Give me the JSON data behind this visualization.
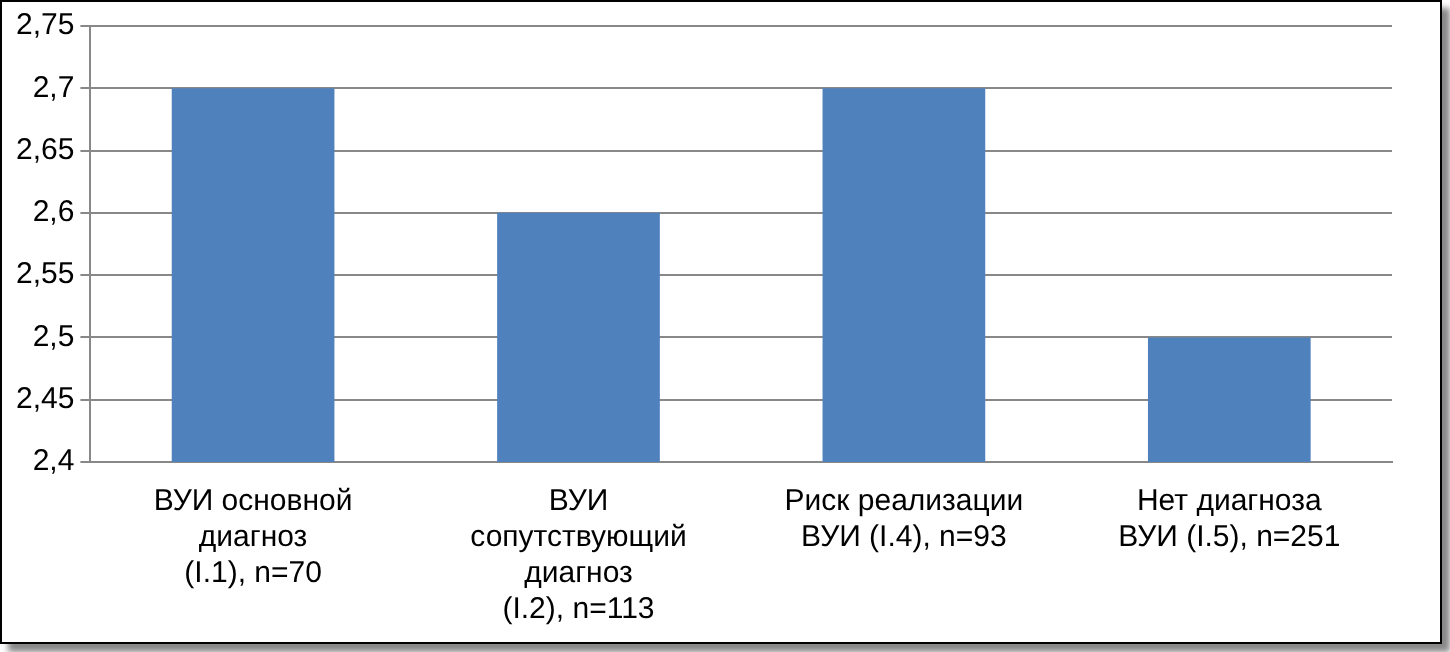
{
  "chart_data": {
    "type": "bar",
    "categories": [
      "ВУИ основной\nдиагноз\n(I.1), n=70",
      "ВУИ\nсопутствующий\nдиагноз\n(I.2), n=113",
      "Риск реализации\nВУИ (I.4), n=93",
      "Нет диагноза\nВУИ (I.5), n=251"
    ],
    "values": [
      2.7,
      2.6,
      2.7,
      2.5
    ],
    "color": "#4f81bd",
    "ylim": [
      2.4,
      2.75
    ],
    "yticks": [
      {
        "value": 2.4,
        "label": "2,4"
      },
      {
        "value": 2.45,
        "label": "2,45"
      },
      {
        "value": 2.5,
        "label": "2,5"
      },
      {
        "value": 2.55,
        "label": "2,55"
      },
      {
        "value": 2.6,
        "label": "2,6"
      },
      {
        "value": 2.65,
        "label": "2,65"
      },
      {
        "value": 2.7,
        "label": "2,7"
      },
      {
        "value": 2.75,
        "label": "2,75"
      }
    ],
    "grid": "y",
    "legend": false
  }
}
